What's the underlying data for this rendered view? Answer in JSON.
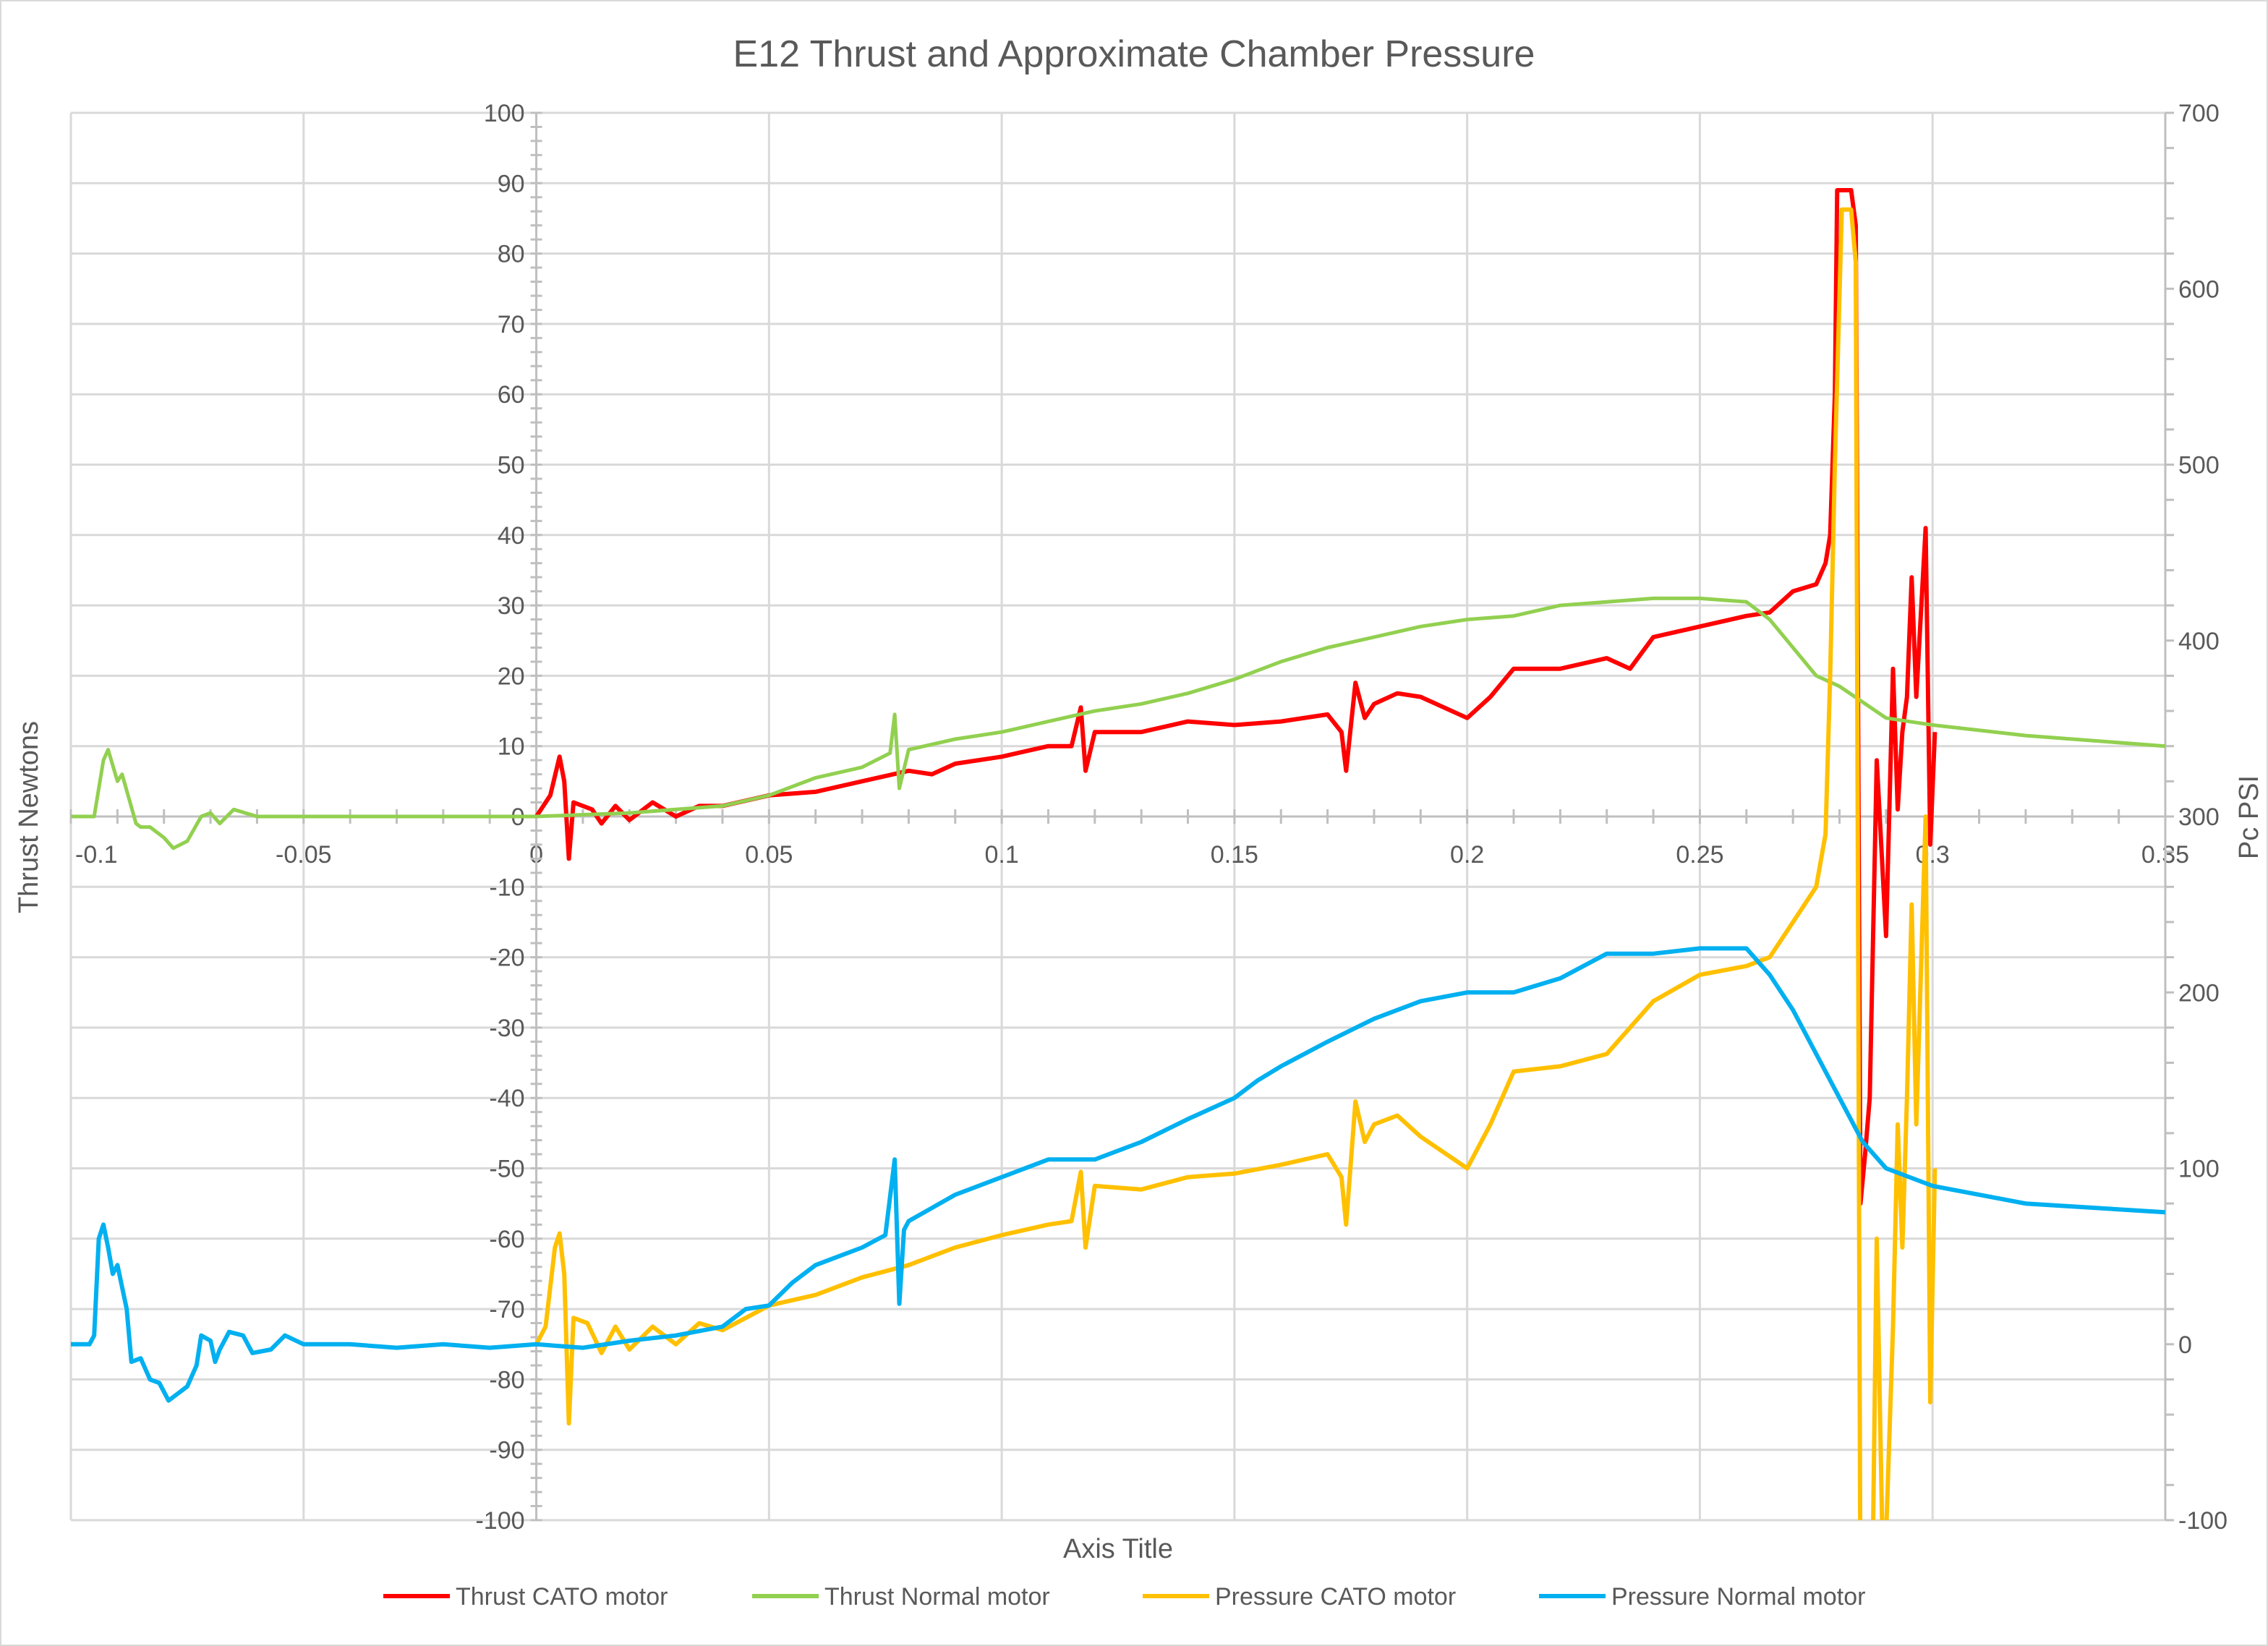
{
  "chart_data": {
    "type": "line",
    "title": "E12 Thrust and Approximate Chamber Pressure",
    "xlabel": "Axis Title",
    "ylabel": "Thrust  Newtons",
    "y2label": "Pc PSI",
    "xlim": [
      -0.1,
      0.35
    ],
    "ylim": [
      -100,
      100
    ],
    "y2lim": [
      -100,
      700
    ],
    "xticks": [
      "-0.1",
      "-0.05",
      "0",
      "0.05",
      "0.1",
      "0.15",
      "0.2",
      "0.25",
      "0.3",
      "0.35"
    ],
    "yticks": [
      "100",
      "90",
      "80",
      "70",
      "60",
      "50",
      "40",
      "30",
      "20",
      "10",
      "0",
      "-10",
      "-20",
      "-30",
      "-40",
      "-50",
      "-60",
      "-70",
      "-80",
      "-90",
      "-100"
    ],
    "y2ticks": [
      "700",
      "600",
      "500",
      "400",
      "300",
      "200",
      "100",
      "0",
      "-100"
    ],
    "grid": true,
    "legend_position": "bottom",
    "series": [
      {
        "name": "Thrust CATO motor",
        "axis": "left",
        "color": "#FF0000",
        "points": [
          [
            0,
            0
          ],
          [
            0.003,
            3
          ],
          [
            0.005,
            8.5
          ],
          [
            0.006,
            5
          ],
          [
            0.007,
            -6
          ],
          [
            0.008,
            2
          ],
          [
            0.012,
            1
          ],
          [
            0.014,
            -1
          ],
          [
            0.017,
            1.5
          ],
          [
            0.02,
            -0.5
          ],
          [
            0.025,
            2
          ],
          [
            0.03,
            0
          ],
          [
            0.035,
            1.5
          ],
          [
            0.04,
            1.5
          ],
          [
            0.05,
            3
          ],
          [
            0.06,
            3.5
          ],
          [
            0.07,
            5
          ],
          [
            0.08,
            6.5
          ],
          [
            0.085,
            6
          ],
          [
            0.09,
            7.5
          ],
          [
            0.1,
            8.5
          ],
          [
            0.11,
            10
          ],
          [
            0.115,
            10
          ],
          [
            0.117,
            15.5
          ],
          [
            0.118,
            6.5
          ],
          [
            0.12,
            12
          ],
          [
            0.13,
            12
          ],
          [
            0.14,
            13.5
          ],
          [
            0.15,
            13
          ],
          [
            0.16,
            13.5
          ],
          [
            0.17,
            14.5
          ],
          [
            0.173,
            12
          ],
          [
            0.174,
            6.5
          ],
          [
            0.176,
            19
          ],
          [
            0.178,
            14
          ],
          [
            0.18,
            16
          ],
          [
            0.185,
            17.5
          ],
          [
            0.19,
            17
          ],
          [
            0.2,
            14
          ],
          [
            0.205,
            17
          ],
          [
            0.21,
            21
          ],
          [
            0.22,
            21
          ],
          [
            0.23,
            22.5
          ],
          [
            0.235,
            21
          ],
          [
            0.24,
            25.5
          ],
          [
            0.25,
            27
          ],
          [
            0.26,
            28.5
          ],
          [
            0.265,
            29
          ],
          [
            0.27,
            32
          ],
          [
            0.275,
            33
          ],
          [
            0.277,
            36
          ],
          [
            0.278,
            40
          ],
          [
            0.279,
            60
          ],
          [
            0.2795,
            89
          ],
          [
            0.2825,
            89
          ],
          [
            0.2835,
            84
          ],
          [
            0.2845,
            -55
          ],
          [
            0.2855,
            -48
          ],
          [
            0.2865,
            -40
          ],
          [
            0.2875,
            -8
          ],
          [
            0.288,
            8
          ],
          [
            0.29,
            -17
          ],
          [
            0.2915,
            21
          ],
          [
            0.2925,
            1
          ],
          [
            0.2935,
            12
          ],
          [
            0.2945,
            17
          ],
          [
            0.2955,
            34
          ],
          [
            0.2965,
            17
          ],
          [
            0.2985,
            41
          ],
          [
            0.2995,
            -4
          ],
          [
            0.3005,
            12
          ]
        ]
      },
      {
        "name": "Thrust Normal motor",
        "axis": "left",
        "color": "#92D050",
        "points": [
          [
            -0.1,
            0
          ],
          [
            -0.095,
            0
          ],
          [
            -0.093,
            8
          ],
          [
            -0.092,
            9.5
          ],
          [
            -0.09,
            5
          ],
          [
            -0.089,
            6
          ],
          [
            -0.086,
            -1
          ],
          [
            -0.085,
            -1.5
          ],
          [
            -0.083,
            -1.5
          ],
          [
            -0.08,
            -3
          ],
          [
            -0.078,
            -4.5
          ],
          [
            -0.075,
            -3.5
          ],
          [
            -0.072,
            0
          ],
          [
            -0.07,
            0.5
          ],
          [
            -0.068,
            -1
          ],
          [
            -0.065,
            1
          ],
          [
            -0.06,
            0
          ],
          [
            -0.05,
            0
          ],
          [
            -0.03,
            0
          ],
          [
            0,
            0
          ],
          [
            0.02,
            0.5
          ],
          [
            0.04,
            1.5
          ],
          [
            0.05,
            3
          ],
          [
            0.06,
            5.5
          ],
          [
            0.07,
            7
          ],
          [
            0.076,
            9
          ],
          [
            0.077,
            14.5
          ],
          [
            0.078,
            4
          ],
          [
            0.08,
            9.5
          ],
          [
            0.09,
            11
          ],
          [
            0.1,
            12
          ],
          [
            0.11,
            13.5
          ],
          [
            0.12,
            15
          ],
          [
            0.13,
            16
          ],
          [
            0.14,
            17.5
          ],
          [
            0.15,
            19.5
          ],
          [
            0.16,
            22
          ],
          [
            0.17,
            24
          ],
          [
            0.18,
            25.5
          ],
          [
            0.19,
            27
          ],
          [
            0.2,
            28
          ],
          [
            0.21,
            28.5
          ],
          [
            0.22,
            30
          ],
          [
            0.23,
            30.5
          ],
          [
            0.24,
            31
          ],
          [
            0.25,
            31
          ],
          [
            0.26,
            30.5
          ],
          [
            0.265,
            28
          ],
          [
            0.27,
            24
          ],
          [
            0.275,
            20
          ],
          [
            0.28,
            18.5
          ],
          [
            0.29,
            14
          ],
          [
            0.3,
            13
          ],
          [
            0.32,
            11.5
          ],
          [
            0.35,
            10
          ]
        ]
      },
      {
        "name": "Pressure CATO motor",
        "axis": "right",
        "color": "#FFC000",
        "points": [
          [
            0,
            0
          ],
          [
            0.002,
            10
          ],
          [
            0.004,
            55
          ],
          [
            0.005,
            63
          ],
          [
            0.006,
            40
          ],
          [
            0.007,
            -45
          ],
          [
            0.008,
            15
          ],
          [
            0.011,
            12
          ],
          [
            0.014,
            -5
          ],
          [
            0.017,
            10
          ],
          [
            0.02,
            -3
          ],
          [
            0.025,
            10
          ],
          [
            0.03,
            0
          ],
          [
            0.035,
            12
          ],
          [
            0.04,
            8
          ],
          [
            0.045,
            15
          ],
          [
            0.05,
            22
          ],
          [
            0.06,
            28
          ],
          [
            0.07,
            38
          ],
          [
            0.08,
            45
          ],
          [
            0.085,
            50
          ],
          [
            0.09,
            55
          ],
          [
            0.1,
            62
          ],
          [
            0.11,
            68
          ],
          [
            0.115,
            70
          ],
          [
            0.117,
            98
          ],
          [
            0.118,
            55
          ],
          [
            0.12,
            90
          ],
          [
            0.13,
            88
          ],
          [
            0.14,
            95
          ],
          [
            0.15,
            97
          ],
          [
            0.16,
            102
          ],
          [
            0.17,
            108
          ],
          [
            0.173,
            95
          ],
          [
            0.174,
            68
          ],
          [
            0.176,
            138
          ],
          [
            0.178,
            115
          ],
          [
            0.18,
            125
          ],
          [
            0.185,
            130
          ],
          [
            0.19,
            118
          ],
          [
            0.2,
            100
          ],
          [
            0.205,
            125
          ],
          [
            0.21,
            155
          ],
          [
            0.22,
            158
          ],
          [
            0.23,
            165
          ],
          [
            0.24,
            195
          ],
          [
            0.25,
            210
          ],
          [
            0.26,
            215
          ],
          [
            0.265,
            220
          ],
          [
            0.27,
            240
          ],
          [
            0.275,
            260
          ],
          [
            0.277,
            290
          ],
          [
            0.278,
            380
          ],
          [
            0.279,
            500
          ],
          [
            0.2805,
            645
          ],
          [
            0.2825,
            645
          ],
          [
            0.2835,
            615
          ],
          [
            0.2845,
            -150
          ],
          [
            0.287,
            -150
          ],
          [
            0.288,
            60
          ],
          [
            0.2895,
            -150
          ],
          [
            0.2915,
            10
          ],
          [
            0.2925,
            125
          ],
          [
            0.2935,
            55
          ],
          [
            0.2945,
            140
          ],
          [
            0.2955,
            250
          ],
          [
            0.2965,
            125
          ],
          [
            0.2985,
            300
          ],
          [
            0.2995,
            -33
          ],
          [
            0.3005,
            100
          ]
        ]
      },
      {
        "name": "Pressure Normal motor",
        "axis": "right",
        "color": "#00B0F0",
        "points": [
          [
            -0.1,
            0
          ],
          [
            -0.096,
            0
          ],
          [
            -0.095,
            5
          ],
          [
            -0.094,
            60
          ],
          [
            -0.093,
            68
          ],
          [
            -0.092,
            55
          ],
          [
            -0.091,
            40
          ],
          [
            -0.09,
            45
          ],
          [
            -0.088,
            20
          ],
          [
            -0.087,
            -10
          ],
          [
            -0.085,
            -8
          ],
          [
            -0.083,
            -20
          ],
          [
            -0.081,
            -22
          ],
          [
            -0.079,
            -32
          ],
          [
            -0.077,
            -28
          ],
          [
            -0.075,
            -24
          ],
          [
            -0.073,
            -12
          ],
          [
            -0.072,
            5
          ],
          [
            -0.07,
            2
          ],
          [
            -0.069,
            -10
          ],
          [
            -0.068,
            -3
          ],
          [
            -0.066,
            7
          ],
          [
            -0.063,
            5
          ],
          [
            -0.061,
            -5
          ],
          [
            -0.057,
            -3
          ],
          [
            -0.054,
            5
          ],
          [
            -0.05,
            0
          ],
          [
            -0.04,
            0
          ],
          [
            -0.03,
            -2
          ],
          [
            -0.02,
            0
          ],
          [
            -0.01,
            -2
          ],
          [
            0,
            0
          ],
          [
            0.01,
            -2
          ],
          [
            0.02,
            2
          ],
          [
            0.03,
            5
          ],
          [
            0.04,
            10
          ],
          [
            0.045,
            20
          ],
          [
            0.05,
            22
          ],
          [
            0.055,
            35
          ],
          [
            0.06,
            45
          ],
          [
            0.07,
            55
          ],
          [
            0.075,
            62
          ],
          [
            0.077,
            105
          ],
          [
            0.078,
            23
          ],
          [
            0.079,
            65
          ],
          [
            0.08,
            70
          ],
          [
            0.09,
            85
          ],
          [
            0.1,
            95
          ],
          [
            0.11,
            105
          ],
          [
            0.12,
            105
          ],
          [
            0.13,
            115
          ],
          [
            0.14,
            128
          ],
          [
            0.15,
            140
          ],
          [
            0.155,
            150
          ],
          [
            0.16,
            158
          ],
          [
            0.17,
            172
          ],
          [
            0.18,
            185
          ],
          [
            0.19,
            195
          ],
          [
            0.2,
            200
          ],
          [
            0.21,
            200
          ],
          [
            0.22,
            208
          ],
          [
            0.23,
            222
          ],
          [
            0.24,
            222
          ],
          [
            0.25,
            225
          ],
          [
            0.26,
            225
          ],
          [
            0.265,
            210
          ],
          [
            0.27,
            190
          ],
          [
            0.275,
            165
          ],
          [
            0.28,
            140
          ],
          [
            0.285,
            115
          ],
          [
            0.29,
            100
          ],
          [
            0.3,
            90
          ],
          [
            0.32,
            80
          ],
          [
            0.35,
            75
          ]
        ]
      }
    ]
  }
}
